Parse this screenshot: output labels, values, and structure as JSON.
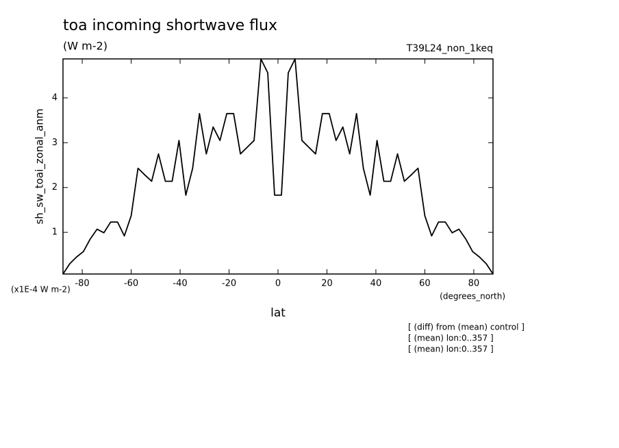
{
  "chart_data": {
    "type": "line",
    "title": "toa incoming shortwave flux",
    "subtitle": "(W m-2)",
    "experiment": "T39L24_non_1keq",
    "y_label": "sh_sw_toai_zonal_anm",
    "y_units": "(x1E-4 W m-2)",
    "x_units": "(degrees_north)",
    "x_label": "lat",
    "notes": [
      "[ (diff) from (mean) control ]",
      "[ (mean) lon:0..357 ]",
      "[ (mean) lon:0..357 ]"
    ],
    "x": [
      -87.86,
      -85.1,
      -82.31,
      -79.53,
      -76.74,
      -73.95,
      -71.16,
      -68.37,
      -65.58,
      -62.79,
      -60.0,
      -57.21,
      -54.42,
      -51.63,
      -48.84,
      -46.04,
      -43.25,
      -40.46,
      -37.67,
      -34.88,
      -32.09,
      -29.3,
      -26.51,
      -23.72,
      -20.93,
      -18.14,
      -15.35,
      -12.56,
      -9.77,
      -6.98,
      -4.19,
      -1.4,
      1.4,
      4.19,
      6.98,
      9.77,
      12.56,
      15.35,
      18.14,
      20.93,
      23.72,
      26.51,
      29.3,
      32.09,
      34.88,
      37.67,
      40.46,
      43.25,
      46.04,
      48.84,
      51.63,
      54.42,
      57.21,
      60.0,
      62.79,
      65.58,
      68.37,
      71.16,
      73.95,
      76.74,
      79.53,
      82.31,
      85.1,
      87.86
    ],
    "series": [
      {
        "color": "#000000",
        "values": [
          0.07,
          0.3,
          0.45,
          0.57,
          0.85,
          1.07,
          0.99,
          1.23,
          1.23,
          0.92,
          1.37,
          2.43,
          2.28,
          2.14,
          2.75,
          2.14,
          2.14,
          3.05,
          1.83,
          2.43,
          3.65,
          2.75,
          3.35,
          3.05,
          3.65,
          3.65,
          2.75,
          2.9,
          3.05,
          4.87,
          4.56,
          1.83,
          1.83,
          4.56,
          4.87,
          3.05,
          2.9,
          2.75,
          3.65,
          3.65,
          3.05,
          3.35,
          2.75,
          3.65,
          2.43,
          1.83,
          3.05,
          2.14,
          2.14,
          2.75,
          2.14,
          2.28,
          2.43,
          1.37,
          0.92,
          1.23,
          1.23,
          0.99,
          1.07,
          0.85,
          0.57,
          0.45,
          0.3,
          0.07
        ]
      }
    ],
    "xlim": [
      -87.86,
      87.86
    ],
    "xticks": [
      -80,
      -60,
      -40,
      -20,
      0,
      20,
      40,
      60,
      80
    ],
    "ylim": [
      0.07,
      4.87
    ],
    "yticks": [
      1,
      2,
      3,
      4
    ]
  }
}
